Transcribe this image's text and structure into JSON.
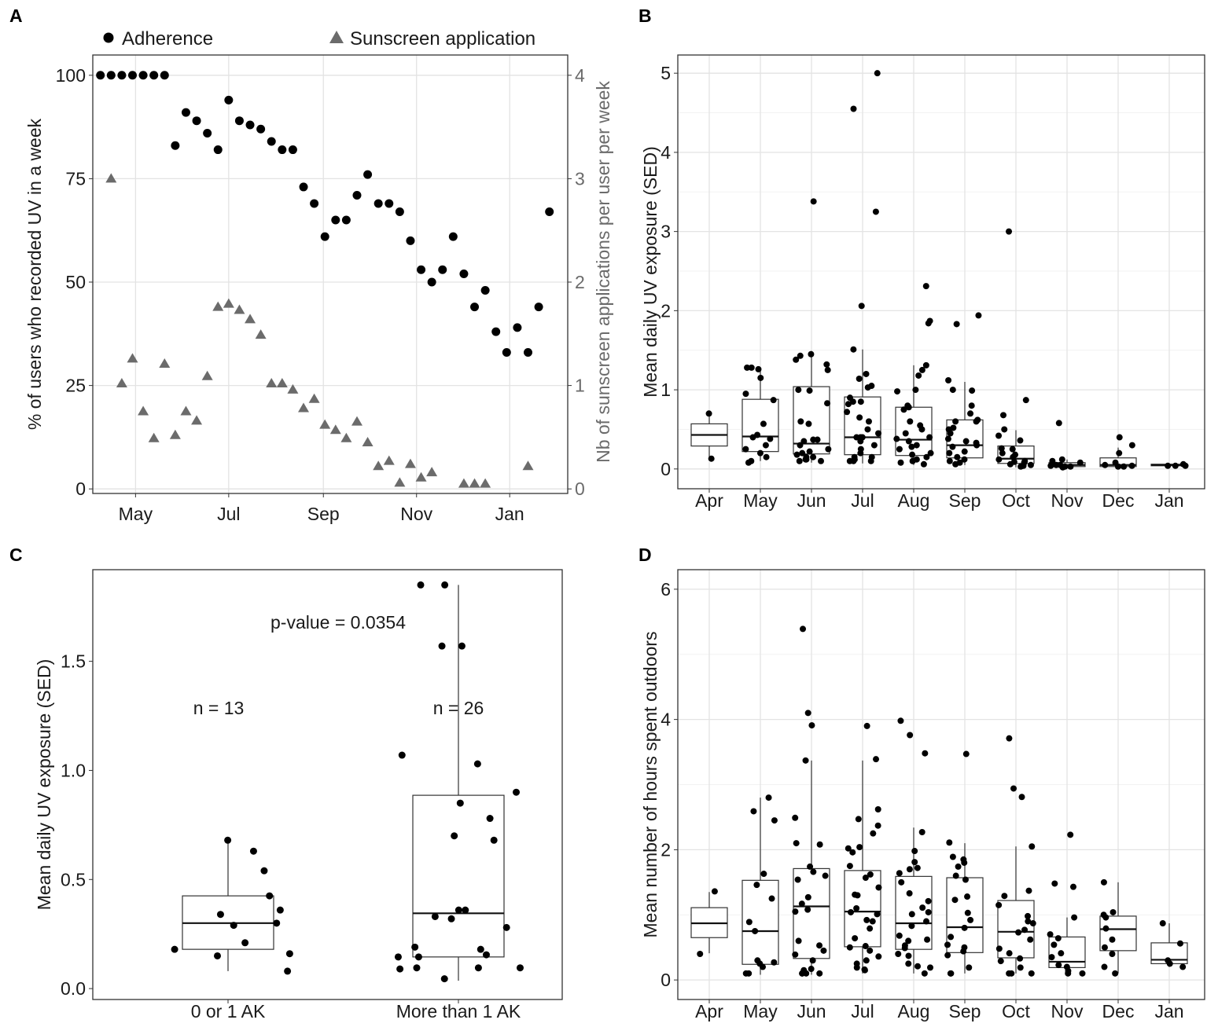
{
  "chart_data": [
    {
      "panel_label": "A",
      "type": "scatter",
      "x_unit": "day (Apr 1 = 0)",
      "xticks": [
        30,
        91,
        153,
        214,
        275
      ],
      "xtick_labels": [
        "May",
        "Jul",
        "Sep",
        "Nov",
        "Jan"
      ],
      "xlim": [
        2,
        313
      ],
      "ylabel": "% of users who recorded UV in a week",
      "ylim": [
        -1.1,
        104.9
      ],
      "yticks": [
        0,
        25,
        50,
        75,
        100
      ],
      "ytick_labels": [
        "0",
        "25",
        "50",
        "75",
        "100"
      ],
      "y2label": "Nb of sunscreen applications per user per week",
      "y2lim": [
        -0.044,
        4.196
      ],
      "y2ticks": [
        0,
        1,
        2,
        3,
        4
      ],
      "y2tick_labels": [
        "0",
        "1",
        "2",
        "3",
        "4"
      ],
      "grid": true,
      "legend_position": "top",
      "legend": [
        "Adherence",
        "Sunscreen application"
      ],
      "colors": {
        "adherence": "#000000",
        "sunscreen": "#6b6b6b"
      },
      "series": [
        {
          "name": "Adherence",
          "axis": "left",
          "marker": "circle",
          "x": [
            7,
            14,
            21,
            28,
            35,
            42,
            49,
            56,
            63,
            70,
            77,
            84,
            91,
            98,
            105,
            112,
            119,
            126,
            133,
            140,
            147,
            154,
            161,
            168,
            175,
            182,
            189,
            196,
            203,
            210,
            217,
            224,
            231,
            238,
            245,
            252,
            259,
            266,
            273,
            280,
            287,
            294,
            301
          ],
          "y": [
            100,
            100,
            100,
            100,
            100,
            100,
            100,
            83,
            91,
            89,
            86,
            82,
            94,
            89,
            88,
            87,
            84,
            82,
            82,
            73,
            69,
            61,
            65,
            65,
            71,
            76,
            69,
            69,
            67,
            60,
            53,
            50,
            53,
            61,
            52,
            44,
            48,
            38,
            33,
            39,
            33,
            44,
            67
          ]
        },
        {
          "name": "Sunscreen application",
          "axis": "right",
          "marker": "triangle",
          "x": [
            14,
            21,
            28,
            35,
            42,
            49,
            56,
            63,
            70,
            77,
            84,
            91,
            98,
            105,
            112,
            119,
            126,
            133,
            140,
            147,
            154,
            161,
            168,
            175,
            182,
            189,
            196,
            203,
            210,
            217,
            224,
            245,
            252,
            259,
            287
          ],
          "y": [
            3.0,
            1.02,
            1.26,
            0.75,
            0.49,
            1.21,
            0.52,
            0.75,
            0.66,
            1.09,
            1.76,
            1.79,
            1.73,
            1.64,
            1.49,
            1.02,
            1.02,
            0.96,
            0.78,
            0.87,
            0.62,
            0.57,
            0.49,
            0.65,
            0.45,
            0.22,
            0.27,
            0.06,
            0.24,
            0.11,
            0.16,
            0.05,
            0.05,
            0.05,
            0.22
          ]
        }
      ]
    },
    {
      "panel_label": "B",
      "type": "box",
      "categories": [
        "Apr",
        "May",
        "Jun",
        "Jul",
        "Aug",
        "Sep",
        "Oct",
        "Nov",
        "Dec",
        "Jan"
      ],
      "ylabel": "Mean daily UV exposure (SED)",
      "ylim": [
        -0.25,
        5.23
      ],
      "yticks": [
        0,
        1,
        2,
        3,
        4,
        5
      ],
      "ytick_labels": [
        "0",
        "1",
        "2",
        "3",
        "4",
        "5"
      ],
      "minor_yticks": [
        0.5,
        1.5,
        2.5,
        3.5,
        4.5
      ],
      "grid": true,
      "boxes": [
        {
          "low": 0.15,
          "q1": 0.29,
          "median": 0.43,
          "q3": 0.57,
          "high": 0.7
        },
        {
          "low": 0.1,
          "q1": 0.22,
          "median": 0.41,
          "q3": 0.88,
          "high": 1.28
        },
        {
          "low": 0.08,
          "q1": 0.19,
          "median": 0.32,
          "q3": 1.04,
          "high": 1.49
        },
        {
          "low": 0.07,
          "q1": 0.18,
          "median": 0.4,
          "q3": 0.91,
          "high": 1.51
        },
        {
          "low": 0.05,
          "q1": 0.17,
          "median": 0.37,
          "q3": 0.78,
          "high": 1.31
        },
        {
          "low": 0.05,
          "q1": 0.14,
          "median": 0.3,
          "q3": 0.62,
          "high": 1.1
        },
        {
          "low": 0.02,
          "q1": 0.07,
          "median": 0.13,
          "q3": 0.29,
          "high": 0.49
        },
        {
          "low": 0.01,
          "q1": 0.03,
          "median": 0.05,
          "q3": 0.08,
          "high": 0.12
        },
        {
          "low": 0.0,
          "q1": 0.03,
          "median": 0.05,
          "q3": 0.14,
          "high": 0.27
        },
        {
          "low": 0.03,
          "q1": 0.04,
          "median": 0.05,
          "q3": 0.06,
          "high": 0.06
        }
      ],
      "points": [
        [
          0.7,
          0.13
        ],
        [
          1.28,
          1.28,
          1.26,
          1.15,
          0.95,
          0.87,
          0.57,
          0.43,
          0.4,
          0.38,
          0.3,
          0.25,
          0.2,
          0.1,
          0.15,
          0.08
        ],
        [
          3.38,
          1.45,
          1.43,
          1.38,
          1.32,
          1.25,
          1.0,
          0.99,
          0.83,
          0.6,
          0.57,
          0.37,
          0.37,
          0.35,
          0.3,
          0.25,
          0.22,
          0.2,
          0.15,
          0.12,
          0.1,
          0.1,
          0.12,
          0.15,
          0.18
        ],
        [
          5.0,
          4.55,
          3.25,
          2.06,
          1.51,
          1.2,
          1.14,
          1.05,
          1.03,
          0.9,
          0.85,
          0.85,
          0.82,
          0.72,
          0.65,
          0.6,
          0.5,
          0.45,
          0.4,
          0.4,
          0.4,
          0.35,
          0.3,
          0.25,
          0.2,
          0.15,
          0.1,
          0.1,
          0.1,
          0.12,
          0.15
        ],
        [
          2.31,
          1.87,
          1.84,
          1.31,
          1.25,
          1.18,
          1.0,
          0.98,
          0.8,
          0.78,
          0.75,
          0.6,
          0.55,
          0.5,
          0.45,
          0.4,
          0.38,
          0.35,
          0.3,
          0.28,
          0.25,
          0.2,
          0.18,
          0.15,
          0.12,
          0.1,
          0.08,
          0.06
        ],
        [
          1.94,
          1.83,
          1.12,
          1.0,
          0.99,
          0.8,
          0.7,
          0.62,
          0.6,
          0.6,
          0.52,
          0.5,
          0.45,
          0.38,
          0.35,
          0.33,
          0.3,
          0.28,
          0.22,
          0.2,
          0.15,
          0.12,
          0.1,
          0.08,
          0.06
        ],
        [
          3.0,
          0.87,
          0.68,
          0.5,
          0.42,
          0.36,
          0.26,
          0.25,
          0.2,
          0.18,
          0.15,
          0.12,
          0.1,
          0.09,
          0.08,
          0.06,
          0.05,
          0.04,
          0.03
        ],
        [
          0.58,
          0.12,
          0.1,
          0.08,
          0.07,
          0.06,
          0.05,
          0.05,
          0.04,
          0.03,
          0.03,
          0.02
        ],
        [
          0.4,
          0.3,
          0.2,
          0.08,
          0.05,
          0.04,
          0.03,
          0.03
        ],
        [
          0.06,
          0.04,
          0.04,
          0.04
        ]
      ]
    },
    {
      "panel_label": "C",
      "type": "box",
      "categories": [
        "0 or 1 AK",
        "More than 1 AK"
      ],
      "ylabel": "Mean daily UV exposure (SED)",
      "ylim": [
        -0.05,
        1.92
      ],
      "yticks": [
        0,
        0.5,
        1.0,
        1.5
      ],
      "ytick_labels": [
        "0.0",
        "0.5",
        "1.0",
        "1.5"
      ],
      "grid": false,
      "annotations": {
        "p_value": "p-value = 0.0354",
        "n": [
          "n = 13",
          "n = 26"
        ]
      },
      "boxes": [
        {
          "low": 0.08,
          "q1": 0.18,
          "median": 0.3,
          "q3": 0.425,
          "high": 0.675
        },
        {
          "low": 0.036,
          "q1": 0.145,
          "median": 0.345,
          "q3": 0.886,
          "high": 1.85
        }
      ],
      "points": [
        [
          0.3,
          0.15,
          0.68,
          0.63,
          0.54,
          0.36,
          0.29,
          0.16,
          0.21,
          0.425,
          0.34,
          0.18,
          0.08
        ],
        [
          0.36,
          1.03,
          1.85,
          0.78,
          0.68,
          0.36,
          0.32,
          0.28,
          0.155,
          1.07,
          1.57,
          0.7,
          0.095,
          0.095,
          0.19,
          0.18,
          0.095,
          1.85,
          1.57,
          0.33,
          0.145,
          0.9,
          0.85,
          0.09,
          0.045,
          0.145
        ]
      ]
    },
    {
      "panel_label": "D",
      "type": "box",
      "categories": [
        "Apr",
        "May",
        "Jun",
        "Jul",
        "Aug",
        "Sep",
        "Oct",
        "Nov",
        "Dec",
        "Jan"
      ],
      "ylabel": "Mean number of hours spent outdoors",
      "ylim": [
        -0.3,
        6.3
      ],
      "yticks": [
        0,
        2,
        4,
        6
      ],
      "ytick_labels": [
        "0",
        "2",
        "4",
        "6"
      ],
      "minor_yticks": [
        1,
        3,
        5
      ],
      "grid": true,
      "boxes": [
        {
          "low": 0.41,
          "q1": 0.65,
          "median": 0.87,
          "q3": 1.11,
          "high": 1.35
        },
        {
          "low": 0.08,
          "q1": 0.24,
          "median": 0.75,
          "q3": 1.53,
          "high": 2.8
        },
        {
          "low": 0.08,
          "q1": 0.33,
          "median": 1.13,
          "q3": 1.71,
          "high": 3.37
        },
        {
          "low": 0.1,
          "q1": 0.51,
          "median": 1.05,
          "q3": 1.68,
          "high": 3.37
        },
        {
          "low": 0.1,
          "q1": 0.47,
          "median": 0.87,
          "q3": 1.59,
          "high": 2.34
        },
        {
          "low": 0.1,
          "q1": 0.42,
          "median": 0.81,
          "q3": 1.57,
          "high": 2.1
        },
        {
          "low": 0.1,
          "q1": 0.34,
          "median": 0.74,
          "q3": 1.22,
          "high": 2.05
        },
        {
          "low": 0.1,
          "q1": 0.19,
          "median": 0.28,
          "q3": 0.66,
          "high": 0.96
        },
        {
          "low": 0.1,
          "q1": 0.45,
          "median": 0.78,
          "q3": 0.98,
          "high": 1.5
        },
        {
          "low": 0.2,
          "q1": 0.25,
          "median": 0.31,
          "q3": 0.57,
          "high": 0.87
        }
      ],
      "points": [
        [
          1.36,
          0.4
        ],
        [
          2.8,
          2.59,
          2.45,
          1.63,
          1.46,
          1.25,
          0.89,
          0.75,
          0.3,
          0.27,
          0.2,
          0.1,
          0.1,
          0.25
        ],
        [
          5.39,
          4.1,
          3.91,
          3.37,
          2.49,
          2.1,
          2.08,
          1.74,
          1.66,
          1.6,
          1.54,
          1.27,
          1.17,
          1.08,
          1.05,
          0.6,
          0.53,
          0.45,
          0.39,
          0.3,
          0.15,
          0.1,
          0.1,
          0.1,
          0.17,
          0.1
        ],
        [
          3.9,
          3.39,
          2.62,
          2.47,
          2.37,
          2.25,
          2.04,
          2.02,
          1.96,
          1.75,
          1.62,
          1.57,
          1.42,
          1.31,
          1.3,
          1.1,
          1.04,
          1.01,
          0.92,
          0.9,
          0.79,
          0.64,
          0.52,
          0.5,
          0.45,
          0.36,
          0.3,
          0.25,
          0.19,
          0.16,
          0.15
        ],
        [
          3.98,
          3.76,
          3.48,
          2.27,
          1.98,
          1.81,
          1.72,
          1.7,
          1.64,
          1.5,
          1.33,
          1.21,
          1.11,
          1.04,
          1.01,
          0.9,
          0.83,
          0.68,
          0.62,
          0.6,
          0.53,
          0.49,
          0.4,
          0.37,
          0.25,
          0.19,
          0.1,
          0.21
        ],
        [
          3.47,
          2.11,
          1.85,
          1.89,
          1.8,
          1.74,
          1.6,
          1.54,
          1.28,
          1.23,
          1.03,
          0.92,
          0.8,
          0.66,
          0.54,
          0.5,
          0.44,
          0.38,
          0.19,
          0.1,
          0.1
        ],
        [
          3.71,
          2.94,
          2.81,
          2.05,
          1.37,
          1.29,
          1.15,
          0.98,
          0.87,
          0.9,
          0.77,
          0.73,
          0.62,
          0.48,
          0.41,
          0.33,
          0.29,
          0.19,
          0.1,
          0.1,
          0.1
        ],
        [
          2.23,
          1.48,
          1.43,
          0.96,
          0.7,
          0.64,
          0.54,
          0.41,
          0.35,
          0.23,
          0.2,
          0.14,
          0.1,
          0.1
        ],
        [
          1.5,
          1.04,
          1.0,
          0.96,
          0.79,
          0.62,
          0.5,
          0.4,
          0.2,
          0.1
        ],
        [
          0.87,
          0.56,
          0.3,
          0.25,
          0.2
        ]
      ]
    }
  ]
}
